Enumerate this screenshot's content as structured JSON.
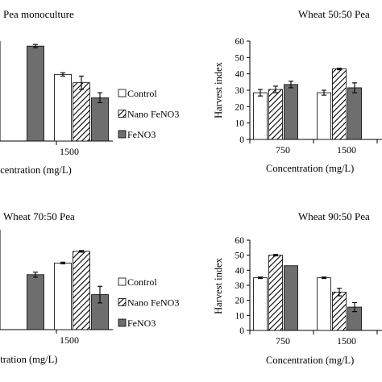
{
  "legend": {
    "entries": [
      {
        "name": "Control",
        "fill": "white"
      },
      {
        "name": "Nano FeNO3",
        "fill": "hatch"
      },
      {
        "name": "FeNO3",
        "fill": "#6e6e6e"
      }
    ]
  },
  "chart_data": [
    {
      "type": "bar",
      "title": "Pea monoculture",
      "xlabel": "ncentration (mg/L)",
      "ylabel": "",
      "categories": [
        "",
        "1500"
      ],
      "ylim": [
        0,
        60
      ],
      "series": [
        {
          "name": "Control",
          "values": [
            null,
            40
          ]
        },
        {
          "name": "Nano FeNO3",
          "values": [
            null,
            35
          ]
        },
        {
          "name": "FeNO3",
          "values": [
            57,
            26
          ]
        }
      ],
      "errors": [
        [
          null,
          1
        ],
        [
          null,
          4
        ],
        [
          1,
          3
        ]
      ]
    },
    {
      "type": "bar",
      "title": "Wheat 50:50 Pea",
      "xlabel": "Concentration (mg/L)",
      "ylabel": "Harvest index",
      "categories": [
        "750",
        "1500"
      ],
      "ylim": [
        0,
        60
      ],
      "yticks": [
        "0",
        "10",
        "20",
        "30",
        "40",
        "50",
        "60"
      ],
      "series": [
        {
          "name": "Control",
          "values": [
            28.5,
            28.5
          ]
        },
        {
          "name": "Nano FeNO3",
          "values": [
            30.5,
            43
          ]
        },
        {
          "name": "FeNO3",
          "values": [
            33.5,
            31.5
          ]
        }
      ],
      "errors": [
        [
          2,
          1.5
        ],
        [
          2,
          0.5
        ],
        [
          2,
          3
        ]
      ]
    },
    {
      "type": "bar",
      "title": "Wheat 70:50 Pea",
      "xlabel": "ntration (mg/L)",
      "ylabel": "",
      "categories": [
        "",
        "1500"
      ],
      "ylim": [
        0,
        60
      ],
      "series": [
        {
          "name": "Control",
          "values": [
            null,
            40
          ]
        },
        {
          "name": "Nano FeNO3",
          "values": [
            null,
            47
          ]
        },
        {
          "name": "FeNO3",
          "values": [
            33,
            21
          ]
        }
      ],
      "errors": [
        [
          null,
          0.5
        ],
        [
          null,
          0.5
        ],
        [
          1.5,
          5
        ]
      ]
    },
    {
      "type": "bar",
      "title": "Wheat 90:50 Pea",
      "xlabel": "Concentration (mg/L)",
      "ylabel": "Harvest index",
      "categories": [
        "750",
        "1500"
      ],
      "ylim": [
        0,
        60
      ],
      "yticks": [
        "0",
        "10",
        "20",
        "30",
        "40",
        "50",
        "60"
      ],
      "series": [
        {
          "name": "Control",
          "values": [
            35,
            35
          ]
        },
        {
          "name": "Nano FeNO3",
          "values": [
            50,
            25.5
          ]
        },
        {
          "name": "FeNO3",
          "values": [
            43,
            15.5
          ]
        }
      ],
      "errors": [
        [
          0.5,
          0.5
        ],
        [
          0.5,
          2.5
        ],
        [
          null,
          3
        ]
      ]
    }
  ]
}
